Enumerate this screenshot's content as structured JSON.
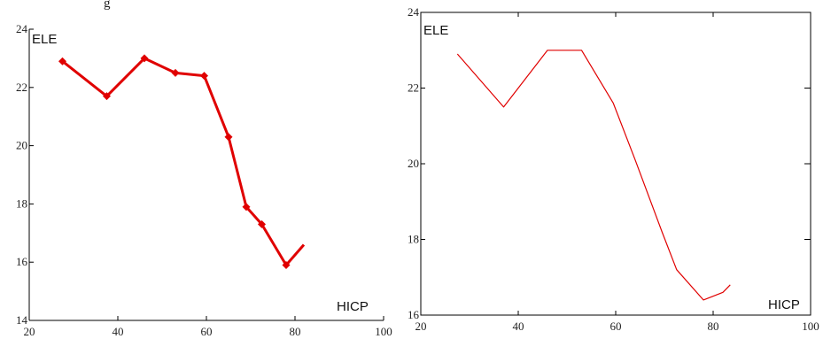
{
  "header_fragment": "g",
  "chart_data": [
    {
      "type": "line",
      "markers": true,
      "title": "",
      "xlabel": "HICP",
      "ylabel": "ELE",
      "xlim": [
        20,
        100
      ],
      "ylim": [
        14,
        24
      ],
      "xticks": [
        "20",
        "40",
        "60",
        "80",
        "100"
      ],
      "yticks": [
        "14",
        "16",
        "18",
        "20",
        "22",
        "24"
      ],
      "color": "#e00000",
      "series": [
        {
          "x": [
            27.5,
            37.5,
            46,
            53,
            59.5,
            65,
            69,
            72.5,
            78,
            82
          ],
          "y": [
            22.9,
            21.7,
            23.0,
            22.5,
            22.4,
            20.3,
            17.9,
            17.3,
            15.9,
            16.6
          ]
        }
      ]
    },
    {
      "type": "line",
      "markers": false,
      "title": "",
      "xlabel": "HICP",
      "ylabel": "ELE",
      "xlim": [
        20,
        100
      ],
      "ylim": [
        16,
        24
      ],
      "xticks": [
        "20",
        "40",
        "60",
        "80",
        "100"
      ],
      "yticks": [
        "16",
        "18",
        "20",
        "22",
        "24"
      ],
      "color": "#e00000",
      "series": [
        {
          "x": [
            27.5,
            37,
            46,
            53,
            59.5,
            64,
            69.5,
            72.5,
            78,
            82,
            83.5
          ],
          "y": [
            22.9,
            21.5,
            23.0,
            23.0,
            21.6,
            20.1,
            18.2,
            17.2,
            16.4,
            16.6,
            16.8
          ]
        }
      ]
    }
  ]
}
